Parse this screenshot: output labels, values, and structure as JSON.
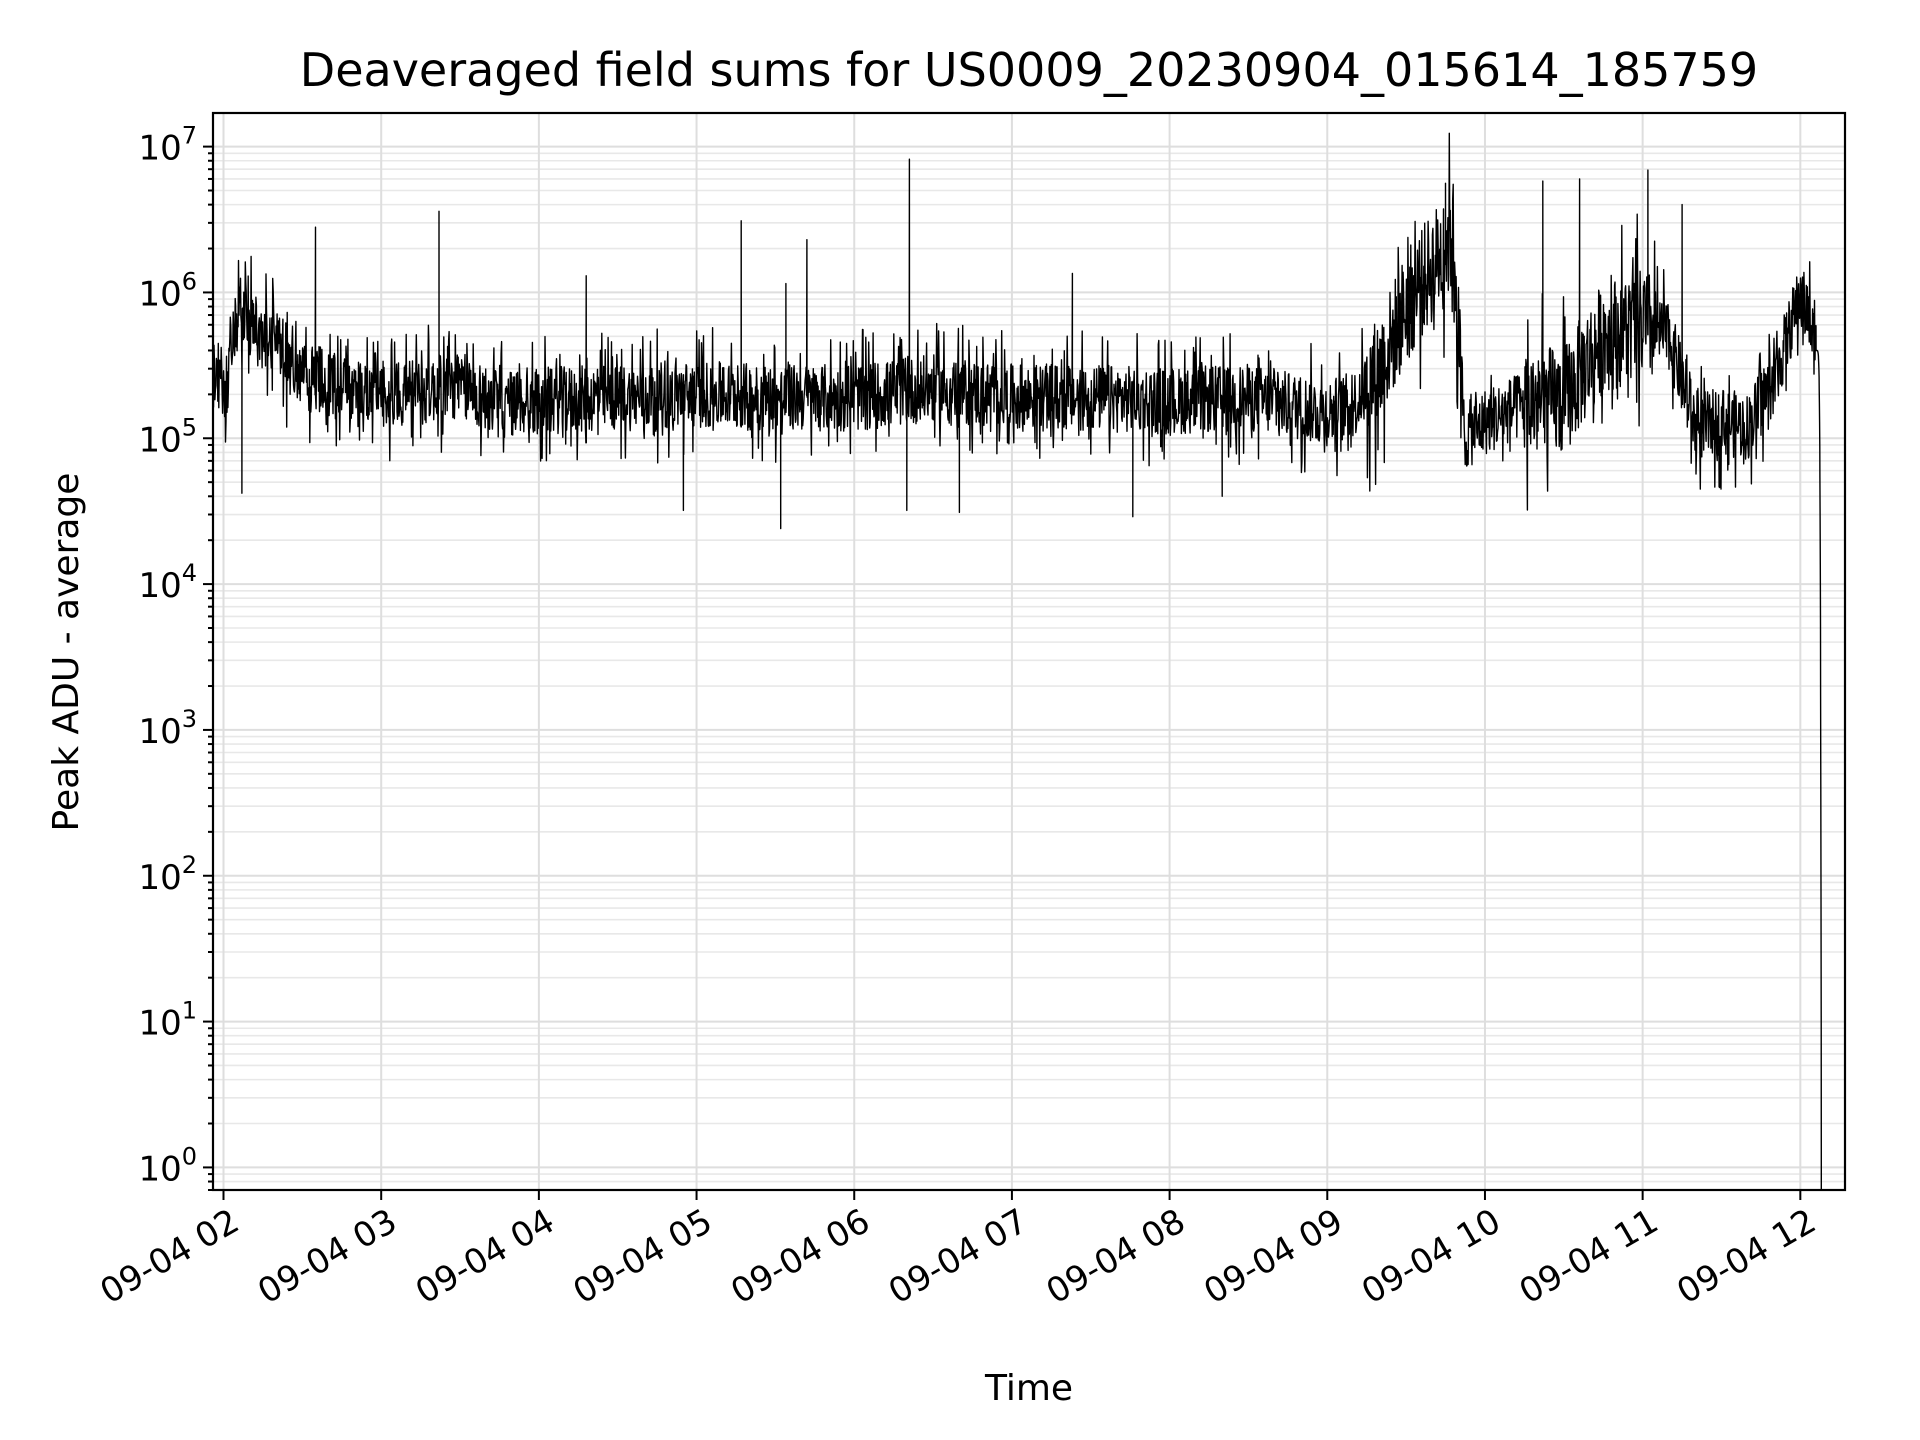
{
  "chart_data": {
    "type": "line",
    "title": "Deaveraged field sums for US0009_20230904_015614_185759",
    "xlabel": "Time",
    "ylabel": "Peak ADU - average",
    "yscale": "log",
    "xlim": [
      "2023-09-04 01:56",
      "2023-09-04 12:17"
    ],
    "ylim": [
      0.7,
      17000000
    ],
    "grid": true,
    "line_color": "#000000",
    "x_ticks": [
      "2023-09-04 02:00",
      "2023-09-04 03:00",
      "2023-09-04 04:00",
      "2023-09-04 05:00",
      "2023-09-04 06:00",
      "2023-09-04 07:00",
      "2023-09-04 08:00",
      "2023-09-04 09:00",
      "2023-09-04 10:00",
      "2023-09-04 11:00",
      "2023-09-04 12:00"
    ],
    "x_tick_labels": [
      "09-04 02",
      "09-04 03",
      "09-04 04",
      "09-04 05",
      "09-04 06",
      "09-04 07",
      "09-04 08",
      "09-04 09",
      "09-04 10",
      "09-04 11",
      "09-04 12"
    ],
    "y_ticks": [
      1,
      10,
      100,
      1000,
      10000,
      100000,
      1000000,
      10000000
    ],
    "y_tick_labels": [
      {
        "base": "10",
        "exp": "0"
      },
      {
        "base": "10",
        "exp": "1"
      },
      {
        "base": "10",
        "exp": "2"
      },
      {
        "base": "10",
        "exp": "3"
      },
      {
        "base": "10",
        "exp": "4"
      },
      {
        "base": "10",
        "exp": "5"
      },
      {
        "base": "10",
        "exp": "6"
      },
      {
        "base": "10",
        "exp": "7"
      }
    ],
    "series": [
      {
        "x": [
          "2023-09-04 01:56",
          "2023-09-04 02:01",
          "2023-09-04 02:06",
          "2023-09-04 02:10",
          "2023-09-04 02:15",
          "2023-09-04 02:20",
          "2023-09-04 02:25",
          "2023-09-04 02:30",
          "2023-09-04 02:35",
          "2023-09-04 02:45",
          "2023-09-04 03:00",
          "2023-09-04 03:15",
          "2023-09-04 03:30",
          "2023-09-04 03:45",
          "2023-09-04 04:00",
          "2023-09-04 04:30",
          "2023-09-04 05:00",
          "2023-09-04 05:30",
          "2023-09-04 06:00",
          "2023-09-04 06:30",
          "2023-09-04 07:00",
          "2023-09-04 07:30",
          "2023-09-04 08:00",
          "2023-09-04 08:30",
          "2023-09-04 09:00",
          "2023-09-04 09:10",
          "2023-09-04 09:20",
          "2023-09-04 09:30",
          "2023-09-04 09:40",
          "2023-09-04 09:48",
          "2023-09-04 09:52",
          "2023-09-04 10:00",
          "2023-09-04 10:15",
          "2023-09-04 10:30",
          "2023-09-04 10:45",
          "2023-09-04 11:00",
          "2023-09-04 11:10",
          "2023-09-04 11:20",
          "2023-09-04 11:30",
          "2023-09-04 11:40",
          "2023-09-04 11:50",
          "2023-09-04 12:00",
          "2023-09-04 12:03",
          "2023-09-04 12:06",
          "2023-09-04 12:08"
        ],
        "values": [
          300000,
          220000,
          800000,
          650000,
          450000,
          550000,
          300000,
          250000,
          260000,
          220000,
          200000,
          210000,
          230000,
          170000,
          180000,
          190000,
          200000,
          190000,
          190000,
          220000,
          190000,
          190000,
          180000,
          190000,
          150000,
          170000,
          300000,
          800000,
          1500000,
          2500000,
          100000,
          130000,
          170000,
          180000,
          500000,
          600000,
          500000,
          120000,
          130000,
          120000,
          250000,
          950000,
          700000,
          400000,
          1.0
        ]
      }
    ],
    "spikes": [
      {
        "x": "2023-09-04 02:35",
        "y": 2800000
      },
      {
        "x": "2023-09-04 03:22",
        "y": 3600000
      },
      {
        "x": "2023-09-04 04:18",
        "y": 1300000
      },
      {
        "x": "2023-09-04 05:17",
        "y": 3100000
      },
      {
        "x": "2023-09-04 05:34",
        "y": 1150000
      },
      {
        "x": "2023-09-04 05:42",
        "y": 2300000
      },
      {
        "x": "2023-09-04 06:21",
        "y": 8200000
      },
      {
        "x": "2023-09-04 07:23",
        "y": 1350000
      },
      {
        "x": "2023-09-04 09:45",
        "y": 5600000
      },
      {
        "x": "2023-09-04 10:22",
        "y": 5800000
      },
      {
        "x": "2023-09-04 10:36",
        "y": 6000000
      },
      {
        "x": "2023-09-04 11:02",
        "y": 6900000
      },
      {
        "x": "2023-09-04 11:15",
        "y": 4000000
      }
    ],
    "dips": [
      {
        "x": "2023-09-04 02:07",
        "y": 42000
      },
      {
        "x": "2023-09-04 04:55",
        "y": 32000
      },
      {
        "x": "2023-09-04 05:32",
        "y": 24000
      },
      {
        "x": "2023-09-04 06:20",
        "y": 32000
      },
      {
        "x": "2023-09-04 06:40",
        "y": 31000
      },
      {
        "x": "2023-09-04 07:46",
        "y": 29000
      },
      {
        "x": "2023-09-04 08:20",
        "y": 40000
      }
    ]
  }
}
